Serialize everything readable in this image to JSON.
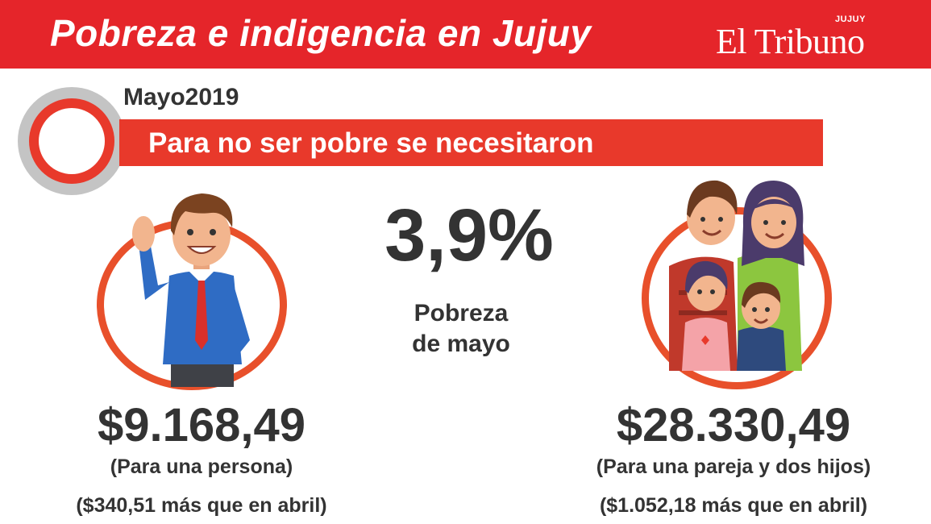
{
  "header": {
    "title": "Pobreza e indigencia en Jujuy",
    "brand": "El Tribuno",
    "brand_region": "JUJUY",
    "color": "#e5252a"
  },
  "period": "Mayo2019",
  "banner": "Para no ser pobre se necesitaron",
  "poverty": {
    "value": "3,9%",
    "caption_line1": "Pobreza",
    "caption_line2": "de mayo"
  },
  "single": {
    "amount": "$9.168,49",
    "label": "(Para una persona)",
    "change": "($340,51 más que en abril)",
    "icon": "man-waving-illustration"
  },
  "family": {
    "amount": "$28.330,49",
    "label": "(Para una pareja y dos hijos)",
    "change": "($1.052,18 más que en abril)",
    "icon": "family-illustration"
  },
  "accent_color": "#e8392b"
}
